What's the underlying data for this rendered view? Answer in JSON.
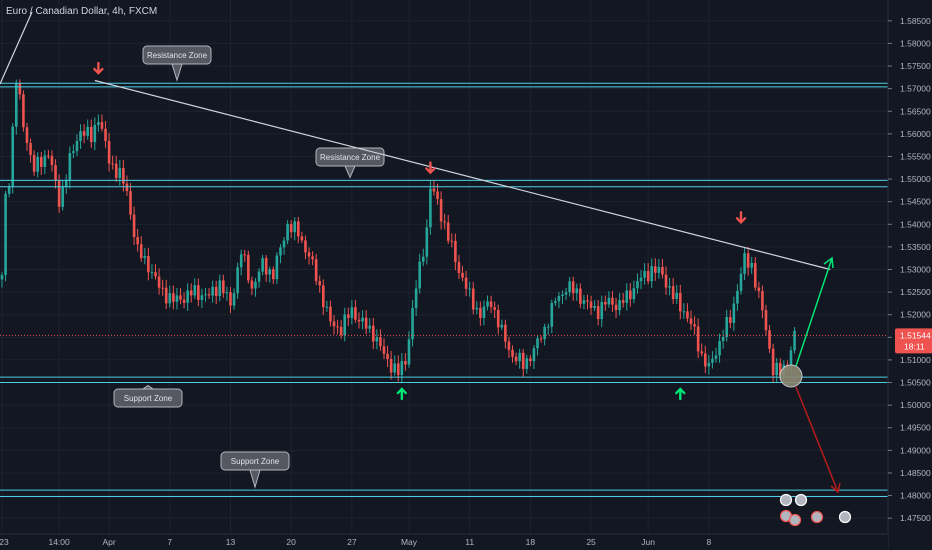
{
  "header": {
    "title": "Euro / Canadian Dollar, 4h, FXCM"
  },
  "colors": {
    "background": "#131722",
    "up": "#26a69a",
    "down": "#ef5350",
    "zone": "#4dd0e1",
    "trend": "#d1d4dc",
    "bull_arrow": "#00e676",
    "bear_arrow": "#b71c1c"
  },
  "price_tag": {
    "value": "1.51544",
    "timer": "18:11"
  },
  "zones": [
    {
      "label": "Resistance Zone",
      "lines": [
        1.5712,
        1.5704
      ]
    },
    {
      "label": "Resistance Zone",
      "lines": [
        1.5497,
        1.5483
      ]
    },
    {
      "label": "Support Zone",
      "lines": [
        1.5062,
        1.505
      ]
    },
    {
      "label": "Support Zone",
      "lines": [
        1.4812,
        1.4798
      ]
    }
  ],
  "chart_data": {
    "type": "candlestick",
    "title": "Euro / Canadian Dollar, 4h, FXCM",
    "x_ticks": [
      "23",
      "14:00",
      "Apr",
      "7",
      "13",
      "20",
      "27",
      "May",
      "11",
      "18",
      "25",
      "Jun",
      "8"
    ],
    "y_ticks": [
      "1.58500",
      "1.58000",
      "1.57500",
      "1.57000",
      "1.56500",
      "1.56000",
      "1.55500",
      "1.55000",
      "1.54500",
      "1.54000",
      "1.53500",
      "1.53000",
      "1.52500",
      "1.52000",
      "1.51500",
      "1.51000",
      "1.50500",
      "1.50000",
      "1.49500",
      "1.49000",
      "1.48500",
      "1.48000",
      "1.47500"
    ],
    "ylim": [
      1.4715,
      1.5885
    ],
    "last_price": 1.51544,
    "path_points": [
      [
        0,
        1.528
      ],
      [
        1,
        1.546
      ],
      [
        2,
        1.55
      ],
      [
        4,
        1.572
      ],
      [
        6,
        1.562
      ],
      [
        9,
        1.552
      ],
      [
        13,
        1.556
      ],
      [
        16,
        1.545
      ],
      [
        19,
        1.554
      ],
      [
        22,
        1.561
      ],
      [
        25,
        1.559
      ],
      [
        27,
        1.564
      ],
      [
        30,
        1.554
      ],
      [
        33,
        1.551
      ],
      [
        35,
        1.547
      ],
      [
        38,
        1.534
      ],
      [
        41,
        1.531
      ],
      [
        44,
        1.526
      ],
      [
        48,
        1.523
      ],
      [
        54,
        1.525
      ],
      [
        58,
        1.524
      ],
      [
        61,
        1.527
      ],
      [
        64,
        1.522
      ],
      [
        67,
        1.534
      ],
      [
        70,
        1.526
      ],
      [
        73,
        1.531
      ],
      [
        76,
        1.529
      ],
      [
        80,
        1.54
      ],
      [
        83,
        1.538
      ],
      [
        86,
        1.533
      ],
      [
        89,
        1.526
      ],
      [
        92,
        1.518
      ],
      [
        95,
        1.517
      ],
      [
        98,
        1.521
      ],
      [
        101,
        1.518
      ],
      [
        104,
        1.516
      ],
      [
        107,
        1.511
      ],
      [
        111,
        1.507
      ],
      [
        113,
        1.51
      ],
      [
        116,
        1.526
      ],
      [
        119,
        1.539
      ],
      [
        120,
        1.548
      ],
      [
        122,
        1.545
      ],
      [
        125,
        1.537
      ],
      [
        128,
        1.53
      ],
      [
        131,
        1.524
      ],
      [
        134,
        1.52
      ],
      [
        137,
        1.523
      ],
      [
        140,
        1.516
      ],
      [
        143,
        1.511
      ],
      [
        146,
        1.509
      ],
      [
        149,
        1.512
      ],
      [
        152,
        1.517
      ],
      [
        155,
        1.523
      ],
      [
        158,
        1.526
      ],
      [
        161,
        1.525
      ],
      [
        164,
        1.522
      ],
      [
        167,
        1.521
      ],
      [
        170,
        1.523
      ],
      [
        173,
        1.522
      ],
      [
        176,
        1.525
      ],
      [
        179,
        1.528
      ],
      [
        182,
        1.53
      ],
      [
        185,
        1.529
      ],
      [
        188,
        1.524
      ],
      [
        191,
        1.521
      ],
      [
        194,
        1.516
      ],
      [
        196,
        1.511
      ],
      [
        198,
        1.508
      ],
      [
        200,
        1.512
      ],
      [
        202,
        1.516
      ],
      [
        204,
        1.519
      ],
      [
        206,
        1.526
      ],
      [
        208,
        1.532
      ],
      [
        210,
        1.531
      ],
      [
        212,
        1.524
      ],
      [
        214,
        1.517
      ],
      [
        216,
        1.508
      ],
      [
        218,
        1.507
      ],
      [
        220,
        1.51
      ],
      [
        222,
        1.515
      ]
    ],
    "x_ticks_at": [
      0,
      16,
      30,
      47,
      64,
      81,
      98,
      114,
      131,
      148,
      165,
      181,
      198
    ],
    "trendline": [
      [
        26,
        1.5718
      ],
      [
        232,
        1.53
      ]
    ],
    "signals": [
      {
        "type": "sell",
        "x": 27,
        "price": 1.573
      },
      {
        "type": "sell",
        "x": 120,
        "price": 1.551
      },
      {
        "type": "sell",
        "x": 207,
        "price": 1.54
      },
      {
        "type": "buy",
        "x": 112,
        "price": 1.504
      },
      {
        "type": "buy",
        "x": 190,
        "price": 1.504
      }
    ]
  }
}
